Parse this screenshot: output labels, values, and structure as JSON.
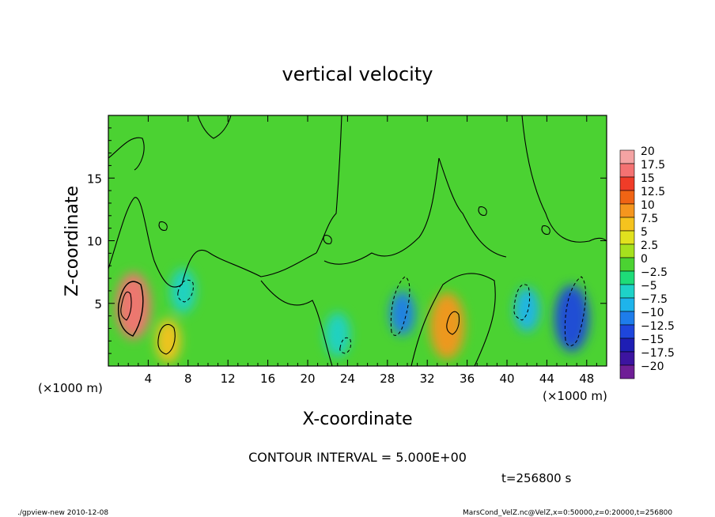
{
  "chart_data": {
    "type": "heatmap",
    "title": "vertical velocity",
    "xlabel": "X-coordinate",
    "ylabel": "Z-coordinate",
    "x_unit": "(×1000 m)",
    "y_unit": "(×1000 m)",
    "xlim": [
      0,
      50
    ],
    "ylim": [
      0,
      20
    ],
    "x_ticks": [
      4,
      8,
      12,
      16,
      20,
      24,
      28,
      32,
      36,
      40,
      44,
      48
    ],
    "y_ticks": [
      5,
      10,
      15
    ],
    "colorbar": {
      "levels": [
        20,
        17.5,
        15,
        12.5,
        10,
        7.5,
        5,
        2.5,
        0,
        -2.5,
        -5,
        -7.5,
        -10,
        -12.5,
        -15,
        -17.5,
        -20
      ],
      "labels": [
        "20",
        "17.5",
        "15",
        "12.5",
        "10",
        "7.5",
        "5",
        "2.5",
        "0",
        "−2.5",
        "−5",
        "−7.5",
        "−10",
        "−12.5",
        "−15",
        "−17.5",
        "−20"
      ],
      "colors": [
        "#f4a3a3",
        "#f47272",
        "#f03c28",
        "#f06414",
        "#f5961e",
        "#f5c31e",
        "#e1e11e",
        "#a5e11e",
        "#4bd232",
        "#1edc78",
        "#1ed2c8",
        "#1eb4eb",
        "#1e7deb",
        "#1e46dc",
        "#1e1eb4",
        "#3c14a0",
        "#6e1e96"
      ]
    },
    "contour_interval_text": "CONTOUR INTERVAL = 5.000E+00",
    "time_text": "t=256800 s",
    "features": [
      {
        "x": 2.5,
        "z": 4.8,
        "value": 17.5
      },
      {
        "x": 6.0,
        "z": 2.0,
        "value": 7.5
      },
      {
        "x": 34.0,
        "z": 3.2,
        "value": 12.0
      },
      {
        "x": 29.5,
        "z": 4.2,
        "value": -10
      },
      {
        "x": 46.5,
        "z": 3.8,
        "value": -11
      },
      {
        "x": 42.0,
        "z": 4.5,
        "value": -7.5
      },
      {
        "x": 7.5,
        "z": 6.0,
        "value": -5
      },
      {
        "x": 23.0,
        "z": 2.5,
        "value": -4
      }
    ]
  },
  "footer": {
    "left": "./gpview-new  2010-12-08",
    "right": "MarsCond_VelZ.nc@VelZ,x=0:50000,z=0:20000,t=256800"
  }
}
